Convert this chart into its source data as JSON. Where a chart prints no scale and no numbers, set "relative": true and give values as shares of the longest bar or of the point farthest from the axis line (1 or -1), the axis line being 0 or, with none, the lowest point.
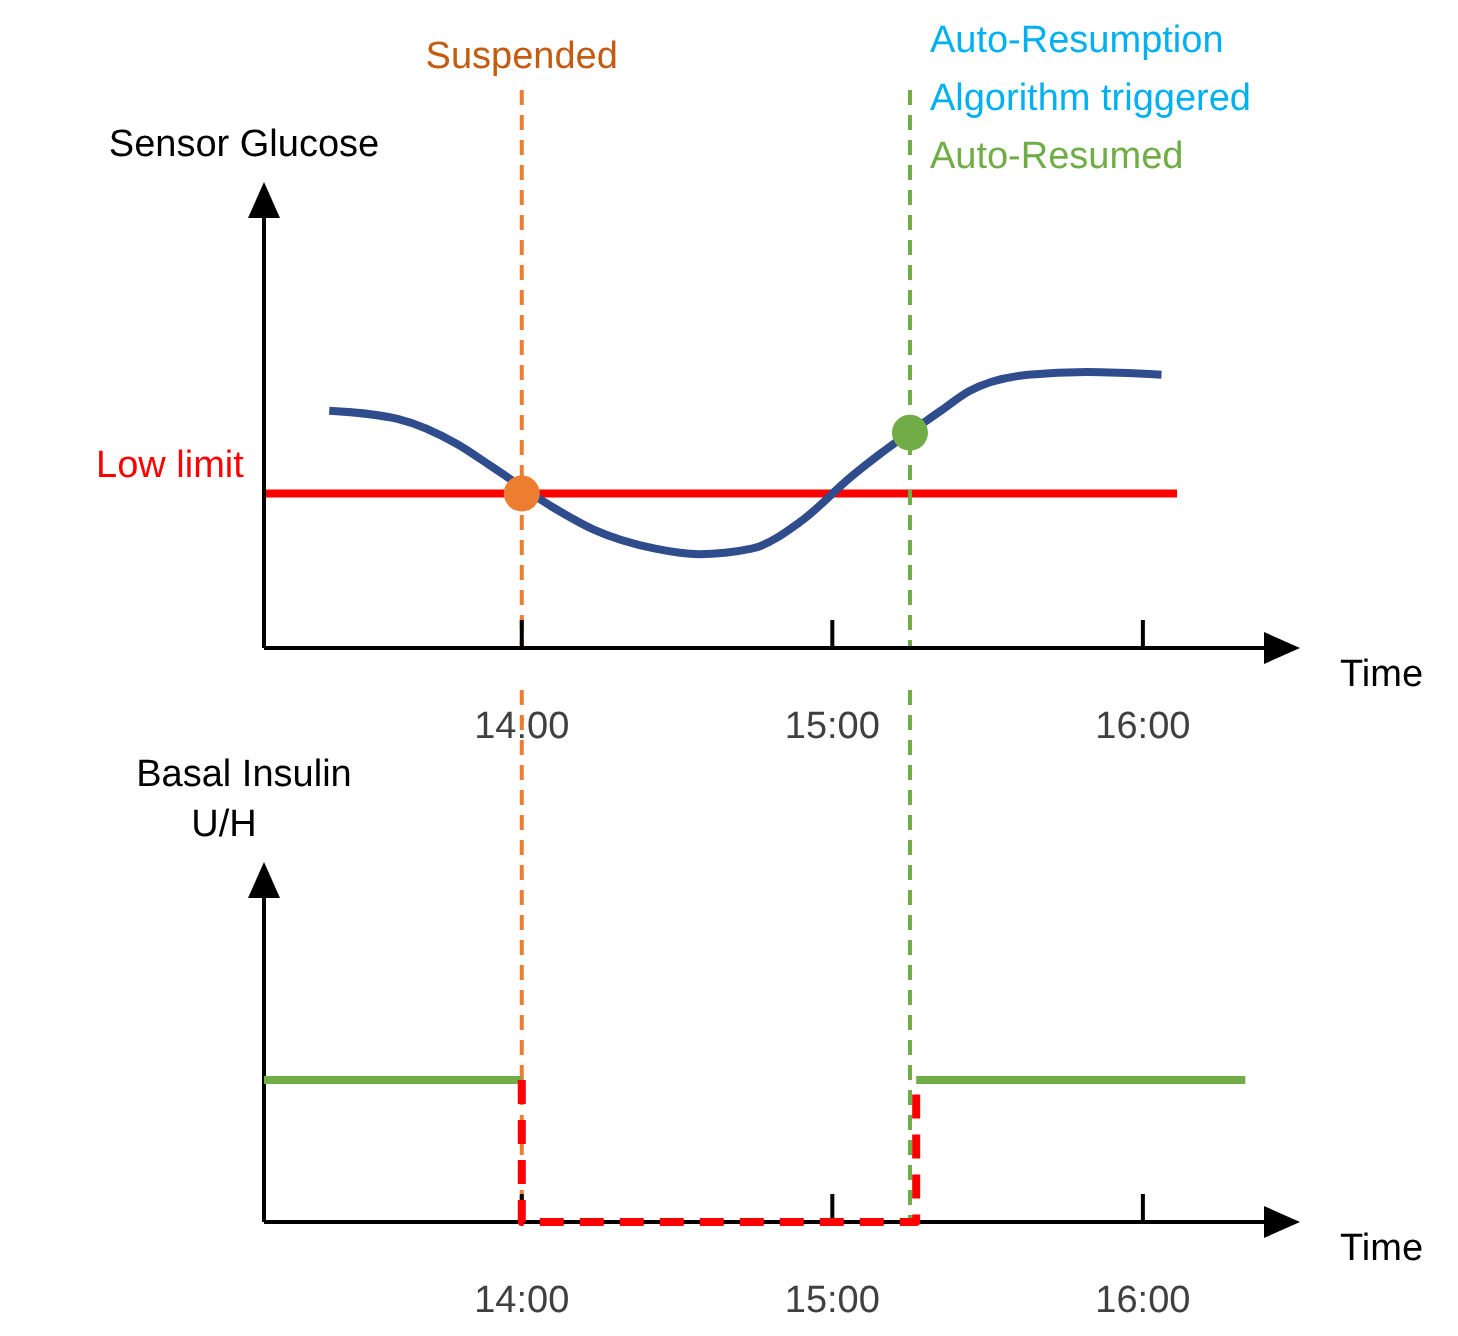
{
  "chart_data": [
    {
      "type": "line",
      "ylabel": "Sensor Glucose",
      "xlabel": "Time",
      "relative": true,
      "xlim": [
        13.17,
        16.39
      ],
      "xticks": [
        {
          "value": 14,
          "label": "14:00"
        },
        {
          "value": 15,
          "label": "15:00"
        },
        {
          "value": 16,
          "label": "16:00"
        }
      ],
      "series": [
        {
          "color": "#2f4d8c",
          "x": [
            13.38,
            13.6,
            13.79,
            13.9,
            14.1,
            14.23,
            14.43,
            14.57,
            14.74,
            14.9,
            15.06,
            15.15,
            15.35,
            15.44,
            15.63,
            15.82,
            16.06
          ],
          "values": [
            0.86,
            0.83,
            0.74,
            0.66,
            0.51,
            0.43,
            0.36,
            0.34,
            0.36,
            0.46,
            0.62,
            0.7,
            0.86,
            0.93,
            0.99,
            1.0,
            0.99
          ]
        },
        {
          "type": "scatter",
          "marker": "circle",
          "color": "#ed7d31",
          "x": [
            14.0
          ],
          "values": [
            0.56
          ]
        },
        {
          "type": "scatter",
          "marker": "circle",
          "color": "#70ad47",
          "x": [
            15.25
          ],
          "values": [
            0.78
          ]
        }
      ],
      "ref_lines": [
        {
          "axis": "y",
          "value": 0.56,
          "label": "Low limit",
          "color": "#ff0000",
          "line_style": "solid"
        },
        {
          "axis": "x",
          "value": 14.0,
          "label": "Suspended",
          "color": "#ed7d31",
          "line_style": "dashed"
        },
        {
          "axis": "x",
          "value": 15.25,
          "label": "Auto-Resumed",
          "color": "#70ad47",
          "line_style": "dashed"
        }
      ],
      "annotations": [
        "Auto-Resumption Algorithm triggered"
      ]
    },
    {
      "type": "line",
      "ylabel": "Basal Insulin U/H",
      "xlabel": "Time",
      "relative": true,
      "xlim": [
        13.17,
        16.39
      ],
      "xticks": [
        {
          "value": 14,
          "label": "14:00"
        },
        {
          "value": 15,
          "label": "15:00"
        },
        {
          "value": 16,
          "label": "16:00"
        }
      ],
      "series": [
        {
          "color": "#70ad47",
          "line_style": "solid",
          "x": [
            13.17,
            14.0
          ],
          "values": [
            1,
            1
          ]
        },
        {
          "color": "#70ad47",
          "line_style": "solid",
          "x": [
            15.27,
            16.33
          ],
          "values": [
            1,
            1
          ]
        },
        {
          "color": "#ff0000",
          "line_style": "dashed",
          "x": [
            14.0,
            14.0,
            15.27,
            15.27
          ],
          "values": [
            1,
            0,
            0,
            1
          ]
        }
      ],
      "ref_lines": [
        {
          "axis": "x",
          "value": 14.0,
          "color": "#ed7d31",
          "line_style": "dashed"
        },
        {
          "axis": "x",
          "value": 15.25,
          "color": "#70ad47",
          "line_style": "dashed"
        }
      ]
    }
  ]
}
